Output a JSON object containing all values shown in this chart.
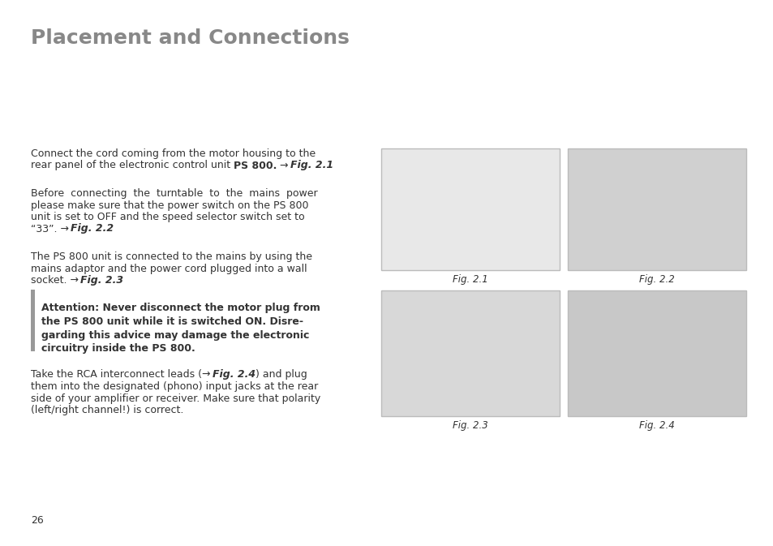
{
  "title": "Placement and Connections",
  "title_color": "#888888",
  "title_fontsize": 18,
  "background_color": "#ffffff",
  "text_color": "#333333",
  "body_fontsize": 9.0,
  "page_number": "26",
  "para1_line1": "Connect the cord coming from the motor housing to the",
  "para1_line2_pre": "rear panel of the electronic control unit ",
  "para1_line2_bold": "PS 800.",
  "para1_line2_arrow": " → ",
  "para1_line2_ibold": "Fig. 2.1",
  "para2_lines": [
    "Before  connecting  the  turntable  to  the  mains  power",
    "please make sure that the power switch on the PS 800",
    "unit is set to OFF and the speed selector switch set to"
  ],
  "para2_last_pre": "“33”. → ",
  "para2_last_ibold": "Fig. 2.2",
  "para3_lines": [
    "The PS 800 unit is connected to the mains by using the",
    "mains adaptor and the power cord plugged into a wall"
  ],
  "para3_last_pre": "socket. → ",
  "para3_last_ibold": "Fig. 2.3",
  "attn_lines": [
    "Attention: Never disconnect the motor plug from",
    "the PS 800 unit while it is switched ON. Disre-",
    "garding this advice may damage the electronic",
    "circuitry inside the PS 800."
  ],
  "para4_line1_pre": "Take the RCA interconnect leads (→ ",
  "para4_line1_ibold": "Fig. 2.4",
  "para4_line1_post": ") and plug",
  "para4_lines": [
    "them into the designated (phono) input jacks at the rear",
    "side of your amplifier or receiver. Make sure that polarity",
    "(left/right channel!) is correct."
  ],
  "sidebar_color": "#999999",
  "fig_border_color": "#bbbbbb",
  "fig_labels": [
    "Fig. 2.1",
    "Fig. 2.2",
    "Fig. 2.3",
    "Fig. 2.4"
  ]
}
